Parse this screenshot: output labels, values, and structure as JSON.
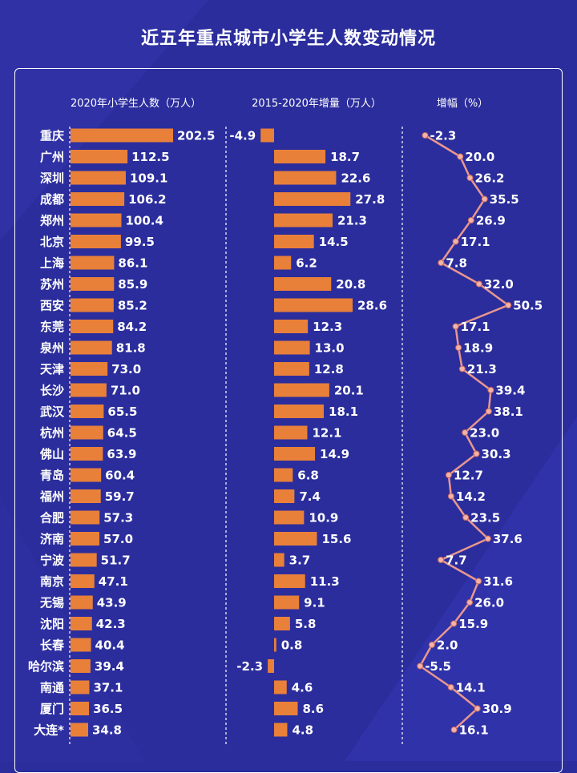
{
  "title": "近五年重点城市小学生人数变动情况",
  "headers": {
    "col1": "2020年小学生人数（万人）",
    "col2": "2015-2020年增量（万人）",
    "col3": "增幅（%）"
  },
  "colors": {
    "background": "#2b2d9c",
    "bar": "#e8803a",
    "line": "#e8978f",
    "marker_fill": "#f2b3a8",
    "text": "#ffffff",
    "divider": "#ffffff"
  },
  "chart_data": [
    {
      "type": "bar",
      "orientation": "horizontal",
      "title": "2020年小学生人数（万人）",
      "categories": [
        "重庆",
        "广州",
        "深圳",
        "成都",
        "郑州",
        "北京",
        "上海",
        "苏州",
        "西安",
        "东莞",
        "泉州",
        "天津",
        "长沙",
        "武汉",
        "杭州",
        "佛山",
        "青岛",
        "福州",
        "合肥",
        "济南",
        "宁波",
        "南京",
        "无锡",
        "沈阳",
        "长春",
        "哈尔滨",
        "南通",
        "厦门",
        "大连*"
      ],
      "values": [
        202.5,
        112.5,
        109.1,
        106.2,
        100.4,
        99.5,
        86.1,
        85.9,
        85.2,
        84.2,
        81.8,
        73.0,
        71.0,
        65.5,
        64.5,
        63.9,
        60.4,
        59.7,
        57.3,
        57.0,
        51.7,
        47.1,
        43.9,
        42.3,
        40.4,
        39.4,
        37.1,
        36.5,
        34.8
      ],
      "labels": [
        "202.5",
        "112.5",
        "109.1",
        "106.2",
        "100.4",
        "99.5",
        "86.1",
        "85.9",
        "85.2",
        "84.2",
        "81.8",
        "73.0",
        "71.0",
        "65.5",
        "64.5",
        "63.9",
        "60.4",
        "59.7",
        "57.3",
        "57.0",
        "51.7",
        "47.1",
        "43.9",
        "42.3",
        "40.4",
        "39.4",
        "37.1",
        "36.5",
        "34.8"
      ]
    },
    {
      "type": "bar",
      "orientation": "horizontal",
      "title": "2015-2020年增量（万人）",
      "categories": [
        "重庆",
        "广州",
        "深圳",
        "成都",
        "郑州",
        "北京",
        "上海",
        "苏州",
        "西安",
        "东莞",
        "泉州",
        "天津",
        "长沙",
        "武汉",
        "杭州",
        "佛山",
        "青岛",
        "福州",
        "合肥",
        "济南",
        "宁波",
        "南京",
        "无锡",
        "沈阳",
        "长春",
        "哈尔滨",
        "南通",
        "厦门",
        "大连*"
      ],
      "values": [
        -4.9,
        18.7,
        22.6,
        27.8,
        21.3,
        14.5,
        6.2,
        20.8,
        28.6,
        12.3,
        13.0,
        12.8,
        20.1,
        18.1,
        12.1,
        14.9,
        6.8,
        7.4,
        10.9,
        15.6,
        3.7,
        11.3,
        9.1,
        5.8,
        0.8,
        -2.3,
        4.6,
        8.6,
        4.8
      ],
      "labels": [
        "-4.9",
        "18.7",
        "22.6",
        "27.8",
        "21.3",
        "14.5",
        "6.2",
        "20.8",
        "28.6",
        "12.3",
        "13.0",
        "12.8",
        "20.1",
        "18.1",
        "12.1",
        "14.9",
        "6.8",
        "7.4",
        "10.9",
        "15.6",
        "3.7",
        "11.3",
        "9.1",
        "5.8",
        "0.8",
        "-2.3",
        "4.6",
        "8.6",
        "4.8"
      ]
    },
    {
      "type": "line",
      "orientation": "vertical",
      "title": "增幅（%）",
      "categories": [
        "重庆",
        "广州",
        "深圳",
        "成都",
        "郑州",
        "北京",
        "上海",
        "苏州",
        "西安",
        "东莞",
        "泉州",
        "天津",
        "长沙",
        "武汉",
        "杭州",
        "佛山",
        "青岛",
        "福州",
        "合肥",
        "济南",
        "宁波",
        "南京",
        "无锡",
        "沈阳",
        "长春",
        "哈尔滨",
        "南通",
        "厦门",
        "大连*"
      ],
      "values": [
        -2.3,
        20.0,
        26.2,
        35.5,
        26.9,
        17.1,
        7.8,
        32.0,
        50.5,
        17.1,
        18.9,
        21.3,
        39.4,
        38.1,
        23.0,
        30.3,
        12.7,
        14.2,
        23.5,
        37.6,
        7.7,
        31.6,
        26.0,
        15.9,
        2.0,
        -5.5,
        14.1,
        30.9,
        16.1
      ],
      "labels": [
        "-2.3",
        "20.0",
        "26.2",
        "35.5",
        "26.9",
        "17.1",
        "7.8",
        "32.0",
        "50.5",
        "17.1",
        "18.9",
        "21.3",
        "39.4",
        "38.1",
        "23.0",
        "30.3",
        "12.7",
        "14.2",
        "23.5",
        "37.6",
        "7.7",
        "31.6",
        "26.0",
        "15.9",
        "2.0",
        "-5.5",
        "14.1",
        "30.9",
        "16.1"
      ]
    }
  ]
}
